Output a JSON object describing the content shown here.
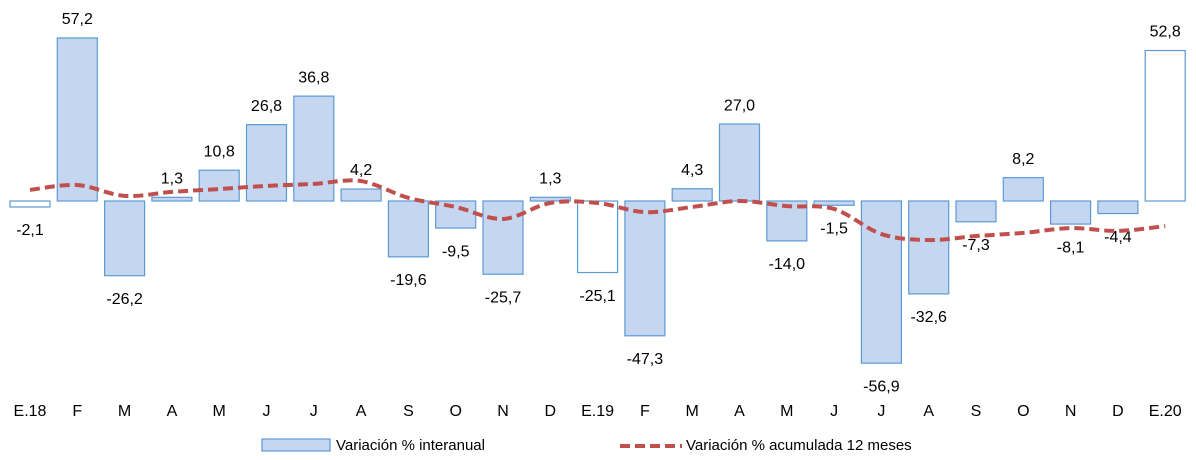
{
  "chart_data": {
    "type": "bar",
    "categories": [
      "E.18",
      "F",
      "M",
      "A",
      "M",
      "J",
      "J",
      "A",
      "S",
      "O",
      "N",
      "D",
      "E.19",
      "F",
      "M",
      "A",
      "M",
      "J",
      "J",
      "A",
      "S",
      "O",
      "N",
      "D",
      "E.20"
    ],
    "series": [
      {
        "name": "Variación % interanual",
        "type": "bar",
        "color": "#c5d6f0",
        "edge_color": "#5b9bd5",
        "bar_colors": [
          "#ffffff",
          "#c5d6f0",
          "#c5d6f0",
          "#c5d6f0",
          "#c5d6f0",
          "#c5d6f0",
          "#c5d6f0",
          "#c5d6f0",
          "#c5d6f0",
          "#c5d6f0",
          "#c5d6f0",
          "#c5d6f0",
          "#ffffff",
          "#c5d6f0",
          "#c5d6f0",
          "#c5d6f0",
          "#c5d6f0",
          "#c5d6f0",
          "#c5d6f0",
          "#c5d6f0",
          "#c5d6f0",
          "#c5d6f0",
          "#c5d6f0",
          "#c5d6f0",
          "#ffffff"
        ],
        "values": [
          -2.1,
          57.2,
          -26.2,
          1.3,
          10.8,
          26.8,
          36.8,
          4.2,
          -19.6,
          -9.5,
          -25.7,
          1.3,
          -25.1,
          -47.3,
          4.3,
          27.0,
          -14.0,
          -1.5,
          -56.9,
          -32.6,
          -7.3,
          8.2,
          -8.1,
          -4.4,
          52.8
        ],
        "value_labels": [
          "-2,1",
          "57,2",
          "-26,2",
          "1,3",
          "10,8",
          "26,8",
          "36,8",
          "4,2",
          "-19,6",
          "-9,5",
          "-25,7",
          "1,3",
          "-25,1",
          "-47,3",
          "4,3",
          "27,0",
          "-14,0",
          "-1,5",
          "-56,9",
          "-32,6",
          "-7,3",
          "8,2",
          "-8,1",
          "-4,4",
          "52,8"
        ]
      },
      {
        "name": "Variación % acumulada 12 meses",
        "type": "line",
        "color": "#c0504d",
        "dashed": true,
        "values": [
          3.9,
          5.6,
          1.8,
          3.2,
          4.2,
          5.3,
          6.0,
          7.0,
          1.1,
          -2.1,
          -6.3,
          -0.7,
          -0.7,
          -3.9,
          -2.1,
          0.0,
          -1.8,
          -2.8,
          -11.6,
          -13.7,
          -12.3,
          -11.2,
          -9.5,
          -10.5,
          -8.8
        ]
      }
    ]
  }
}
